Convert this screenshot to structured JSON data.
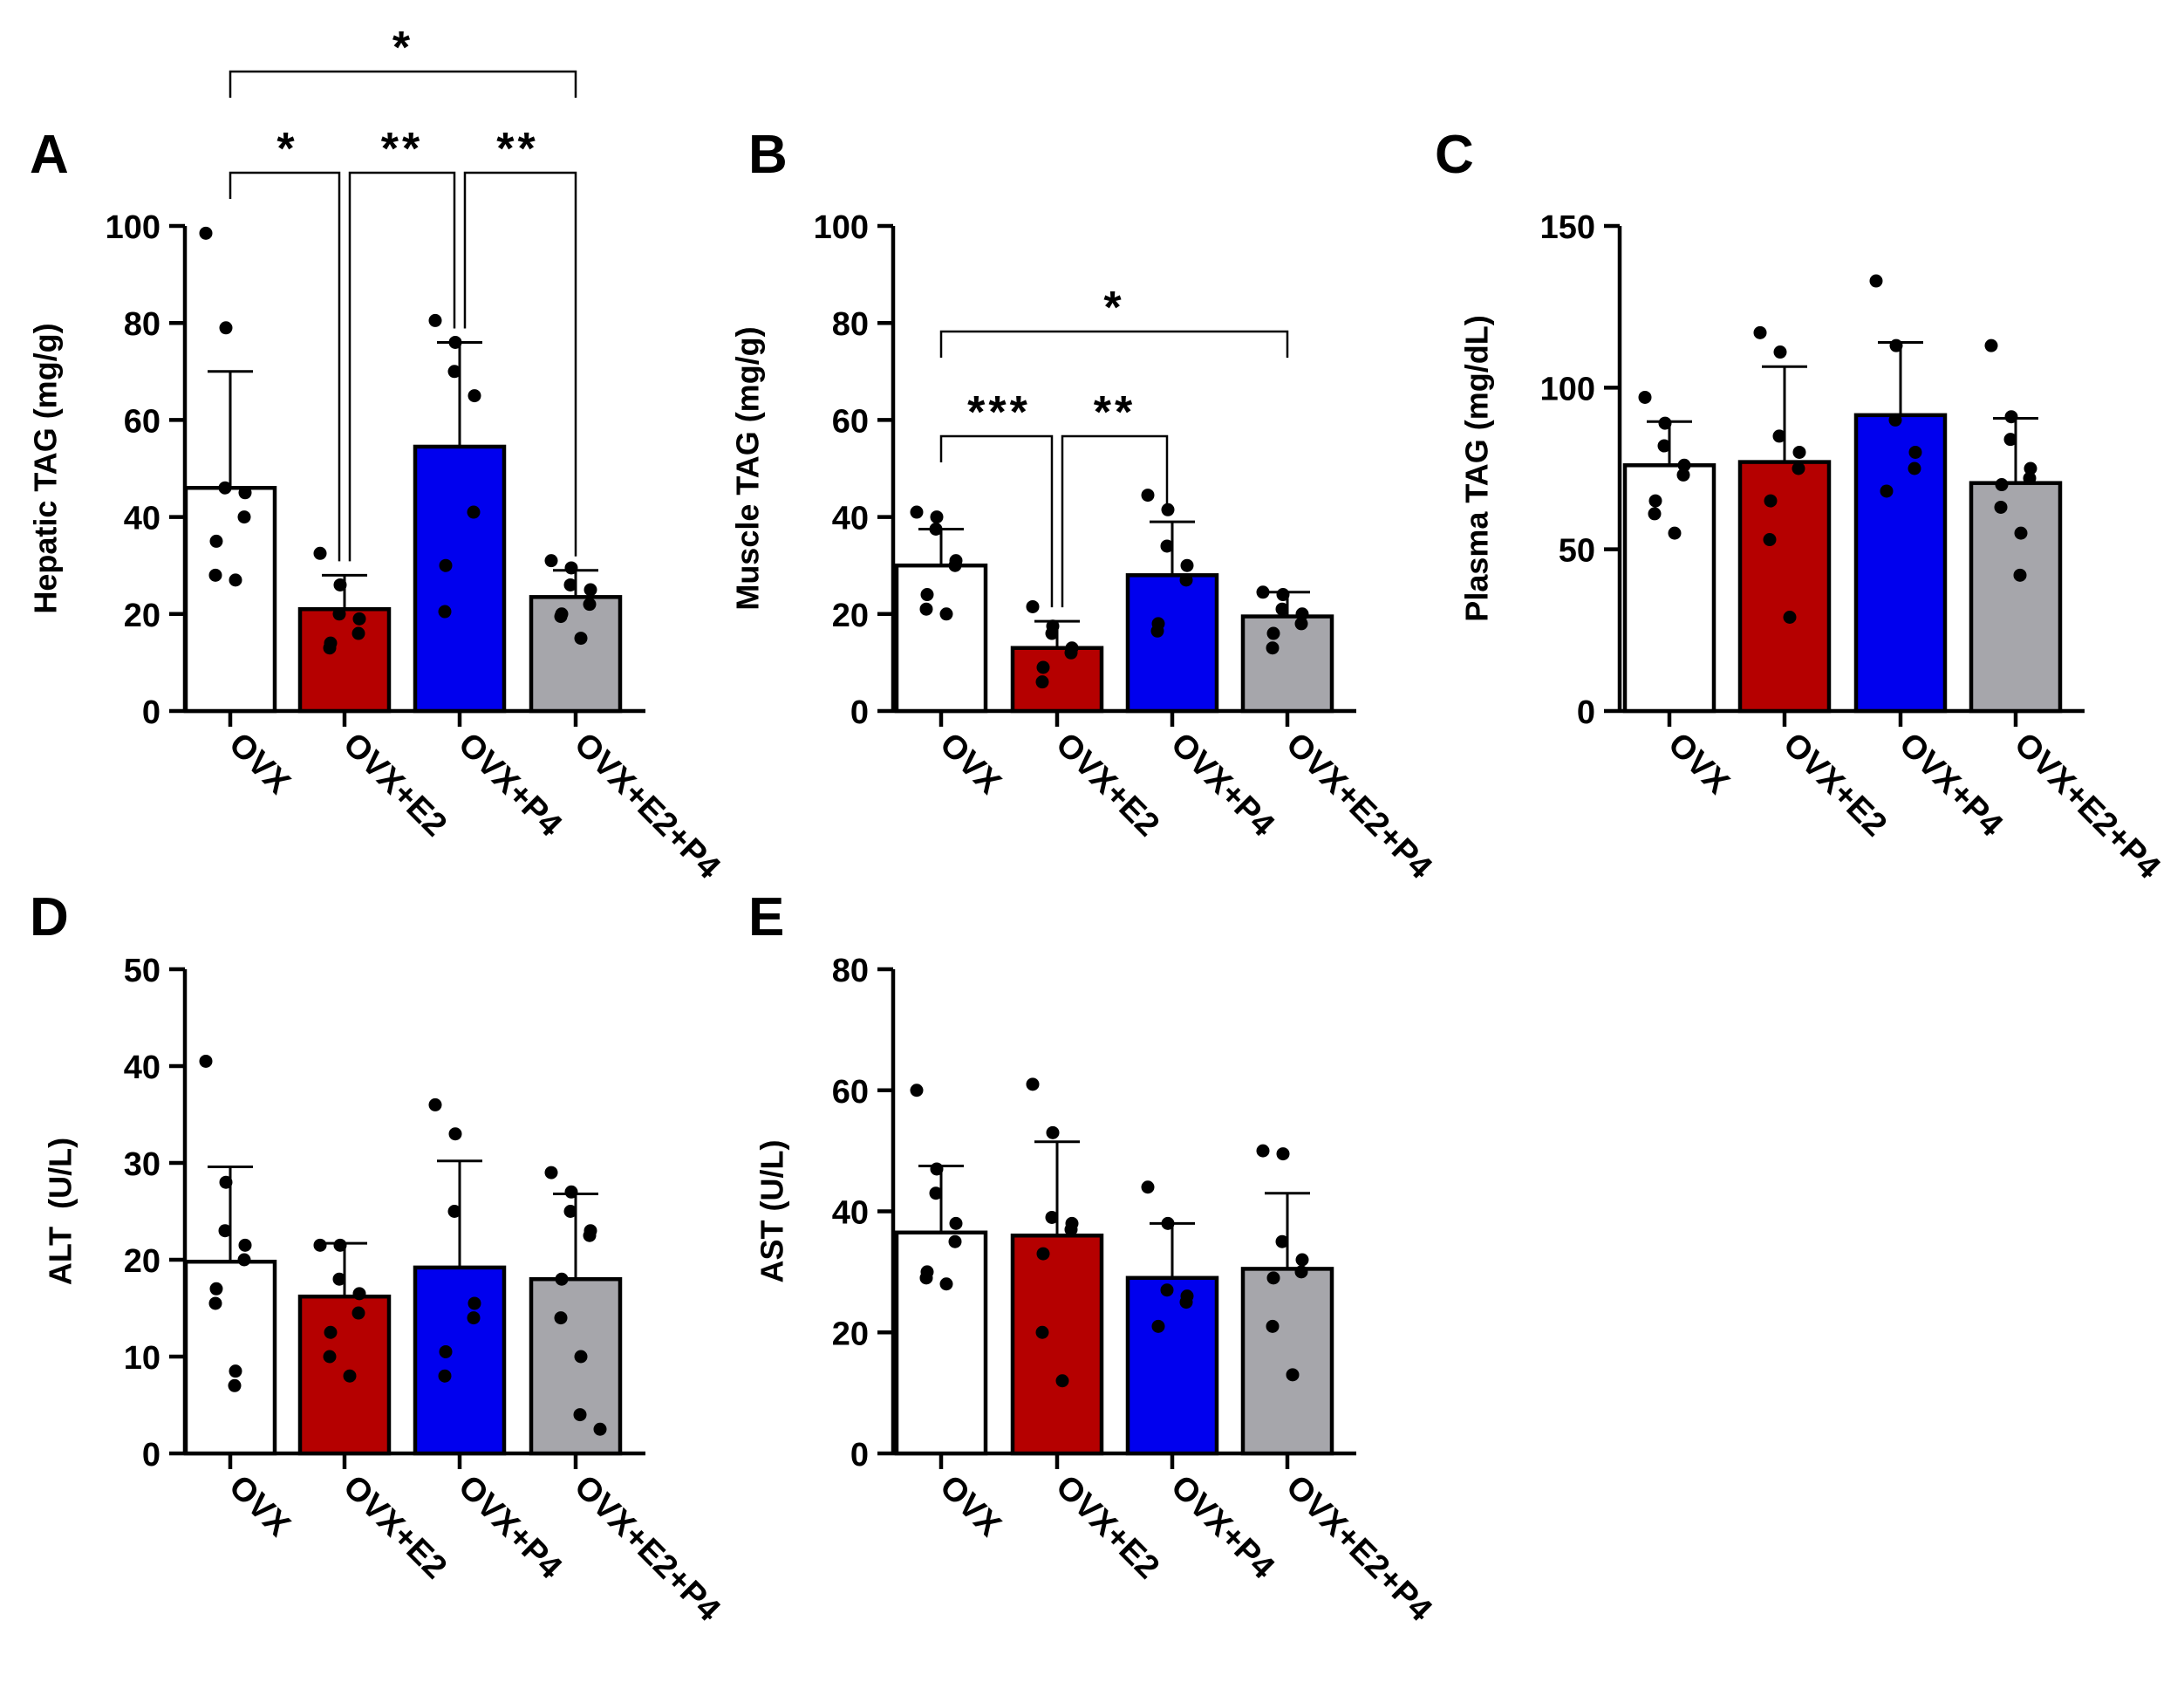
{
  "colors": {
    "OVX": "#ffffff",
    "OVX+E2": "#b50000",
    "OVX+P4": "#0000ee",
    "OVX+E2+P4": "#a6a6ab",
    "axis": "#000000"
  },
  "chart_data": [
    {
      "panel": "A",
      "type": "bar",
      "categories": [
        "OVX",
        "OVX+E2",
        "OVX+P4",
        "OVX+E2+P4"
      ],
      "ylabel": "Hepatic TAG (mg/g)",
      "ylim": [
        0,
        100
      ],
      "yticks": [
        0,
        20,
        40,
        60,
        80,
        100
      ],
      "values": [
        46,
        21,
        54.5,
        23.5
      ],
      "errors": [
        24,
        7,
        21.5,
        5.5
      ],
      "points": [
        [
          98.5,
          79,
          46,
          45,
          40,
          35,
          28,
          27
        ],
        [
          32.5,
          26,
          20,
          19,
          16,
          14,
          13
        ],
        [
          80.5,
          76,
          70,
          65,
          41,
          30,
          20.5
        ],
        [
          31,
          29.5,
          26,
          25,
          22,
          20,
          19.5,
          15
        ]
      ],
      "significance": [
        {
          "from": "OVX",
          "to": "OVX+E2",
          "label": "*",
          "level": 1
        },
        {
          "from": "OVX+E2",
          "to": "OVX+P4",
          "label": "**",
          "level": 1
        },
        {
          "from": "OVX+P4",
          "to": "OVX+E2+P4",
          "label": "**",
          "level": 1
        },
        {
          "from": "OVX",
          "to": "OVX+E2+P4",
          "label": "*",
          "level": 2
        }
      ]
    },
    {
      "panel": "B",
      "type": "bar",
      "categories": [
        "OVX",
        "OVX+E2",
        "OVX+P4",
        "OVX+E2+P4"
      ],
      "ylabel": "Muscle TAG (mg/g)",
      "ylim": [
        0,
        100
      ],
      "yticks": [
        0,
        20,
        40,
        60,
        80,
        100
      ],
      "values": [
        30,
        13,
        28,
        19.5
      ],
      "errors": [
        7.5,
        5.5,
        11,
        5
      ],
      "points": [
        [
          41,
          40,
          37.5,
          31,
          30,
          24,
          21,
          20
        ],
        [
          21.5,
          17.5,
          16,
          13,
          12,
          9,
          6
        ],
        [
          44.5,
          41.5,
          34,
          30,
          27,
          18,
          16.5
        ],
        [
          24.5,
          24,
          21,
          20,
          18,
          16,
          13
        ]
      ],
      "significance": [
        {
          "from": "OVX",
          "to": "OVX+E2",
          "label": "***",
          "level": 1
        },
        {
          "from": "OVX+E2",
          "to": "OVX+P4",
          "label": "**",
          "level": 1
        },
        {
          "from": "OVX",
          "to": "OVX+E2+P4",
          "label": "*",
          "level": 2
        }
      ]
    },
    {
      "panel": "C",
      "type": "bar",
      "categories": [
        "OVX",
        "OVX+E2",
        "OVX+P4",
        "OVX+E2+P4"
      ],
      "ylabel": "Plasma TAG (mg/dL)",
      "ylim": [
        0,
        150
      ],
      "yticks": [
        0,
        50,
        100,
        150
      ],
      "values": [
        76,
        77,
        91.5,
        70.5
      ],
      "errors": [
        13.5,
        29.5,
        22.5,
        20
      ],
      "points": [
        [
          97,
          89,
          82,
          76,
          73,
          65,
          61,
          55
        ],
        [
          117,
          111,
          85,
          80,
          75,
          65,
          53,
          29
        ],
        [
          133,
          113,
          90,
          80,
          75,
          68
        ],
        [
          113,
          91,
          84,
          75,
          72,
          70,
          63,
          55,
          42
        ]
      ],
      "significance": []
    },
    {
      "panel": "D",
      "type": "bar",
      "categories": [
        "OVX",
        "OVX+E2",
        "OVX+P4",
        "OVX+E2+P4"
      ],
      "ylabel": "ALT  (U/L)",
      "ylim": [
        0,
        50
      ],
      "yticks": [
        0,
        10,
        20,
        30,
        40,
        50
      ],
      "values": [
        19.8,
        16.2,
        19.2,
        18
      ],
      "errors": [
        9.8,
        5.5,
        11,
        8.8
      ],
      "points": [
        [
          40.5,
          28,
          23,
          21.5,
          20,
          17,
          15.5,
          8.5,
          7
        ],
        [
          21.5,
          21.5,
          18,
          16.5,
          14.5,
          12.5,
          10,
          8
        ],
        [
          36,
          33,
          25,
          15.5,
          14,
          10.5,
          8
        ],
        [
          29,
          27,
          25,
          23,
          22.5,
          18,
          14,
          10,
          4,
          2.5
        ]
      ],
      "significance": []
    },
    {
      "panel": "E",
      "type": "bar",
      "categories": [
        "OVX",
        "OVX+E2",
        "OVX+P4",
        "OVX+E2+P4"
      ],
      "ylabel": "AST (U/L)",
      "ylim": [
        0,
        80
      ],
      "yticks": [
        0,
        20,
        40,
        60,
        80
      ],
      "values": [
        36.5,
        36,
        29,
        30.5
      ],
      "errors": [
        11,
        15.5,
        9,
        12.5
      ],
      "points": [
        [
          60,
          47,
          43,
          38,
          35,
          30,
          29,
          28
        ],
        [
          61,
          53,
          39,
          38,
          37,
          33,
          20,
          12
        ],
        [
          44,
          38,
          27,
          26,
          25,
          21
        ],
        [
          50,
          49.5,
          35,
          32,
          30,
          29,
          21,
          13
        ]
      ],
      "significance": []
    }
  ]
}
